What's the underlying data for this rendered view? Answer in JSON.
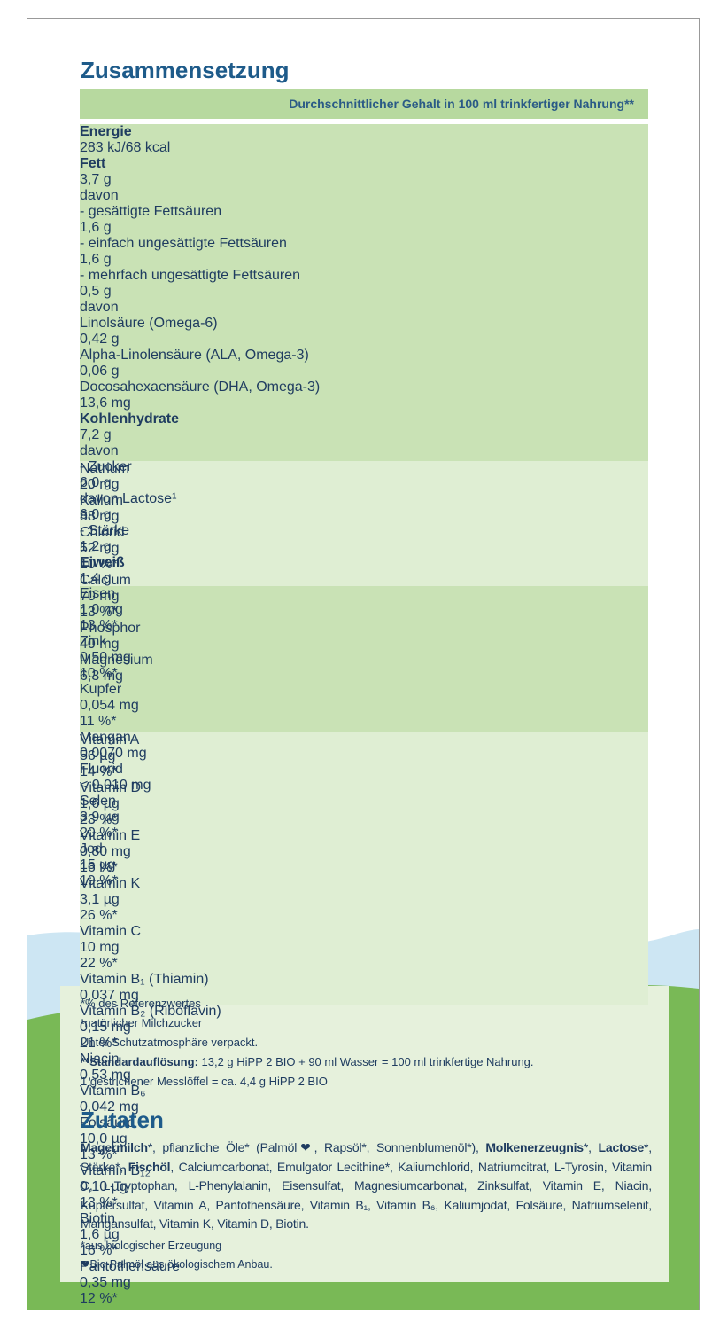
{
  "title": "Zusammensetzung",
  "table": {
    "header": "Durchschnittlicher Gehalt in 100 ml trinkfertiger Nahrung**",
    "groups": [
      {
        "shade": "dark",
        "align": "left",
        "rows": [
          {
            "name": "Energie",
            "amount": "283 kJ/68 kcal",
            "indent": 0,
            "bold": true
          },
          {
            "name": "Fett",
            "amount": "3,7 g",
            "indent": 0,
            "bold": true
          },
          {
            "name": "davon",
            "indent": 0
          },
          {
            "name": "- gesättigte Fettsäuren",
            "amount": "1,6 g",
            "indent": 1
          },
          {
            "name": "- einfach ungesättigte Fettsäuren",
            "amount": "1,6 g",
            "indent": 1
          },
          {
            "name": "- mehrfach ungesättigte Fettsäuren",
            "amount": "0,5 g",
            "indent": 1
          },
          {
            "name": "davon",
            "indent": 2
          },
          {
            "name": "Linolsäure (Omega-6)",
            "amount": "0,42 g",
            "indent": 3
          },
          {
            "name": "Alpha-Linolensäure (ALA, Omega-3)",
            "amount": "0,06 g",
            "indent": 3
          },
          {
            "name": "Docosahexaensäure (DHA, Omega-3)",
            "amount": "13,6 mg",
            "indent": 3
          },
          {
            "name": "Kohlenhydrate",
            "amount": "7,2 g",
            "indent": 0,
            "bold": true
          },
          {
            "name": "davon",
            "indent": 0
          },
          {
            "name": "- Zucker",
            "amount": "6,0 g",
            "indent": 1
          },
          {
            "name": "davon Lactose¹",
            "amount": "6,0 g",
            "indent": 2
          },
          {
            "name": "- Stärke",
            "amount": "1,2 g",
            "indent": 1
          },
          {
            "name": "Eiweiß",
            "amount": "1,4 g",
            "indent": 0,
            "bold": true
          }
        ]
      },
      {
        "shade": "light",
        "align": "right",
        "rows": [
          {
            "name": "Natrium",
            "amount": "20 mg",
            "indent": 0
          },
          {
            "name": "Kalium",
            "amount": "88 mg",
            "indent": 0
          },
          {
            "name": "Chlorid",
            "amount": "52 mg",
            "percent": "10 %*",
            "indent": 0
          },
          {
            "name": "Calcium",
            "amount": "70 mg",
            "percent": "13 %*",
            "indent": 0
          },
          {
            "name": "Phosphor",
            "amount": "40 mg",
            "indent": 0
          },
          {
            "name": "Magnesium",
            "amount": "6,3 mg",
            "indent": 0
          }
        ]
      },
      {
        "shade": "dark",
        "align": "right",
        "rows": [
          {
            "name": "Eisen",
            "amount": "1,0 mg",
            "percent": "13 %*",
            "indent": 0
          },
          {
            "name": "Zink",
            "amount": "0,50 mg",
            "percent": "10 %*",
            "indent": 0
          },
          {
            "name": "Kupfer",
            "amount": "0,054 mg",
            "percent": "11 %*",
            "indent": 0
          },
          {
            "name": "Mangan",
            "amount": "0,0070 mg",
            "indent": 0
          },
          {
            "name": "Fluorid",
            "amount": "< 0,010 mg",
            "indent": 0
          },
          {
            "name": "Selen",
            "amount": "3,9 µg",
            "percent": "20 %*",
            "indent": 0
          },
          {
            "name": "Jod",
            "amount": "15 µg",
            "percent": "19 %*",
            "indent": 0
          }
        ]
      },
      {
        "shade": "light",
        "align": "right",
        "rows": [
          {
            "name": "Vitamin A",
            "amount": "56 µg",
            "percent": "14 %*",
            "indent": 0
          },
          {
            "name": "Vitamin D",
            "amount": "1,6 µg",
            "percent": "23 %*",
            "indent": 0
          },
          {
            "name": "Vitamin E",
            "amount": "0,80 mg",
            "percent": "16 %*",
            "indent": 0
          },
          {
            "name": "Vitamin K",
            "amount": "3,1 µg",
            "percent": "26 %*",
            "indent": 0
          },
          {
            "name": "Vitamin C",
            "amount": "10 mg",
            "percent": "22 %*",
            "indent": 0
          },
          {
            "name": "Vitamin B₁ (Thiamin)",
            "amount": "0,037 mg",
            "indent": 0
          },
          {
            "name": "Vitamin B₂ (Riboflavin)",
            "amount": "0,15 mg",
            "percent": "21 %*",
            "indent": 0
          },
          {
            "name": "Niacin",
            "amount": "0,53 mg",
            "indent": 0
          },
          {
            "name": "Vitamin B₆",
            "amount": "0,042 mg",
            "indent": 0
          },
          {
            "name": "Folsäure",
            "amount": "10,0 µg",
            "percent": "13 %*",
            "indent": 0
          },
          {
            "name": "Vitamin B₁₂",
            "amount": "0,10 µg",
            "percent": "13 %*",
            "indent": 0
          },
          {
            "name": "Biotin",
            "amount": "1,6 µg",
            "percent": "16 %*",
            "indent": 0
          },
          {
            "name": "Pantothensäure",
            "amount": "0,35 mg",
            "percent": "12 %*",
            "indent": 0
          }
        ]
      }
    ]
  },
  "footnotes": [
    {
      "parts": [
        {
          "text": "*% des Referenzwertes"
        }
      ]
    },
    {
      "parts": [
        {
          "text": "¹natürlicher Milchzucker"
        }
      ]
    },
    {
      "parts": [
        {
          "text": "Unter Schutzatmosphäre verpackt."
        }
      ]
    },
    {
      "parts": [
        {
          "text": "**Standardauflösung:",
          "bold": true
        },
        {
          "text": " 13,2 g HiPP 2 BIO + 90 ml Wasser = 100 ml trinkfertige Nahrung."
        }
      ]
    },
    {
      "parts": [
        {
          "text": "1 gestrichener Messlöffel = ca. 4,4 g HiPP 2 BIO"
        }
      ]
    }
  ],
  "ingredients": {
    "title": "Zutaten",
    "parts": [
      {
        "text": "Magermilch",
        "bold": true
      },
      {
        "text": "*, pflanzliche Öle* (Palmöl❤, Rapsöl*, Sonnenblumenöl*), "
      },
      {
        "text": "Molkenerzeugnis",
        "bold": true
      },
      {
        "text": "*, "
      },
      {
        "text": "Lactose",
        "bold": true
      },
      {
        "text": "*, Stärke*, "
      },
      {
        "text": "Fischöl",
        "bold": true
      },
      {
        "text": ", Calciumcarbonat, Emulgator Lecithine*, Kaliumchlorid, Natriumcitrat, L-Tyrosin, Vitamin C, L-Tryptophan, L-Phenylalanin, Eisensulfat, Magnesiumcarbonat, Zinksulfat, Vitamin E, Niacin, Kupfersulfat, Vitamin A, Pantothensäure, Vitamin B₁, Vitamin B₆, Kaliumjodat, Folsäure, Natriumselenit, Mangansulfat, Vitamin K, Vitamin D, Biotin."
      }
    ],
    "notes": [
      "*aus biologischer Erzeugung",
      "❤Bio-Palmöl aus ökologischem Anbau."
    ]
  }
}
